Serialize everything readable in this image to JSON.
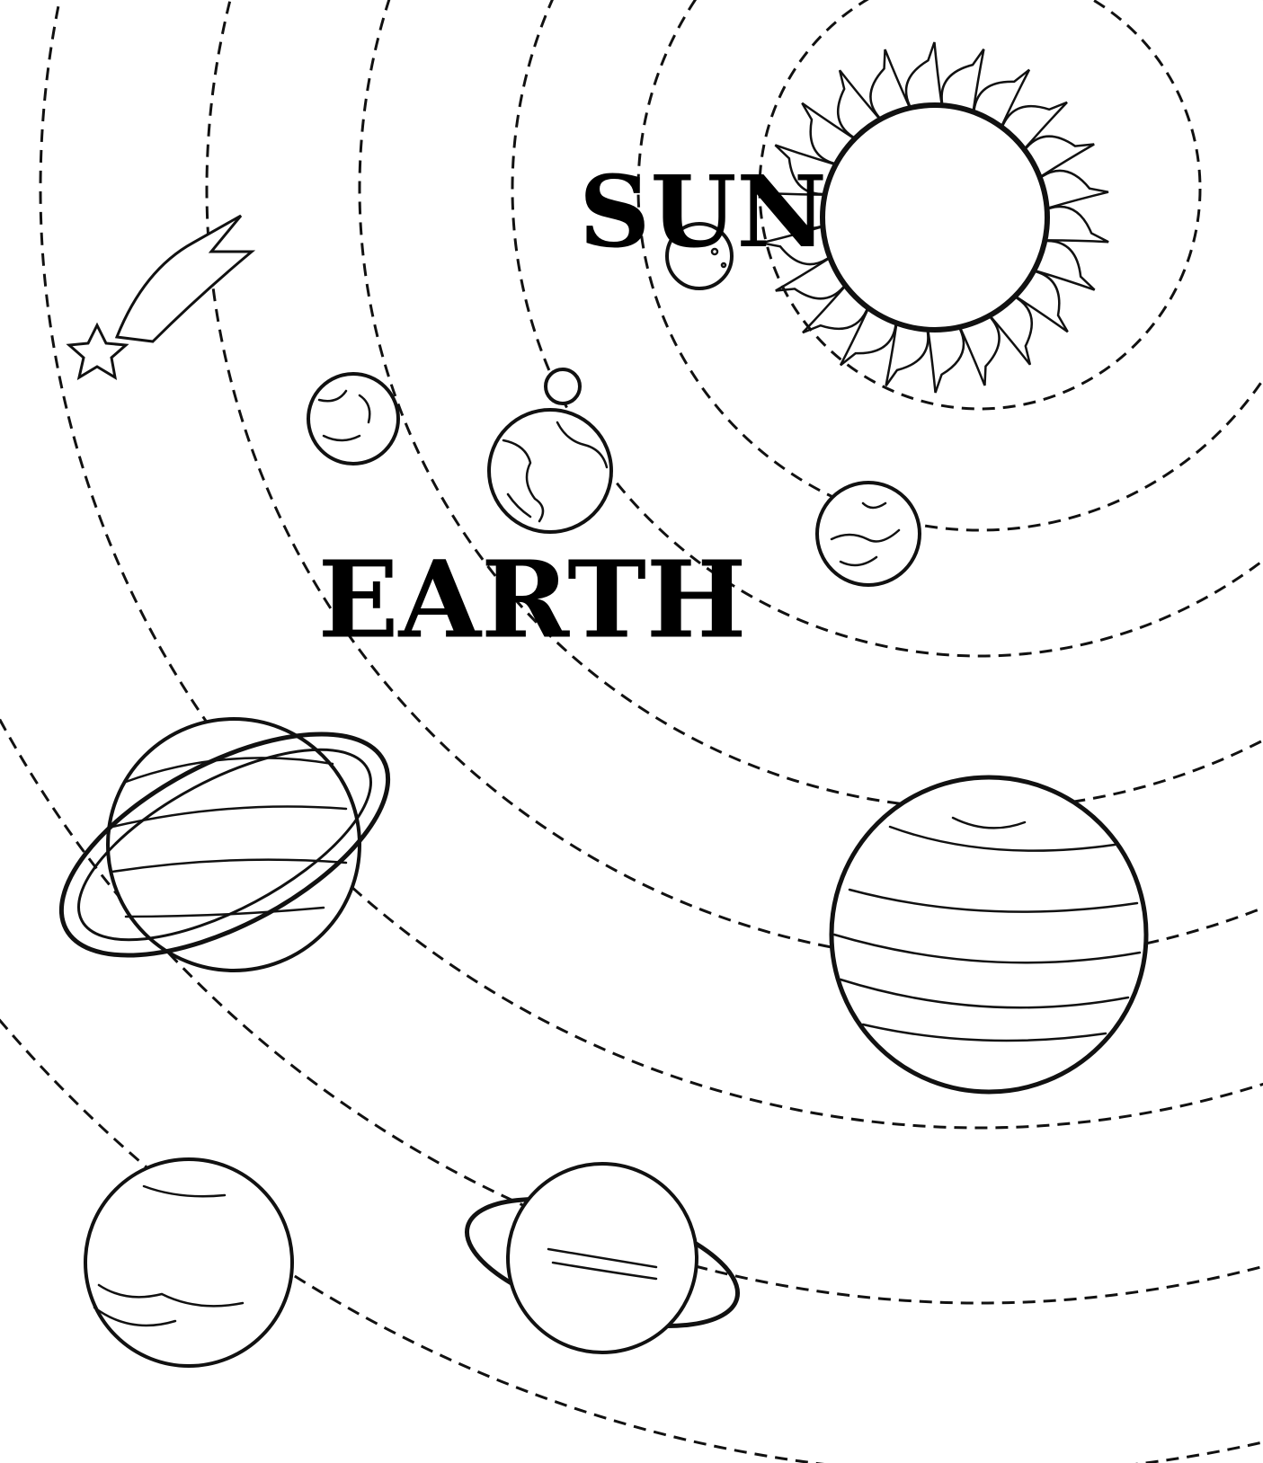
{
  "labels": {
    "sun": "SUN",
    "earth": "EARTH"
  }
}
